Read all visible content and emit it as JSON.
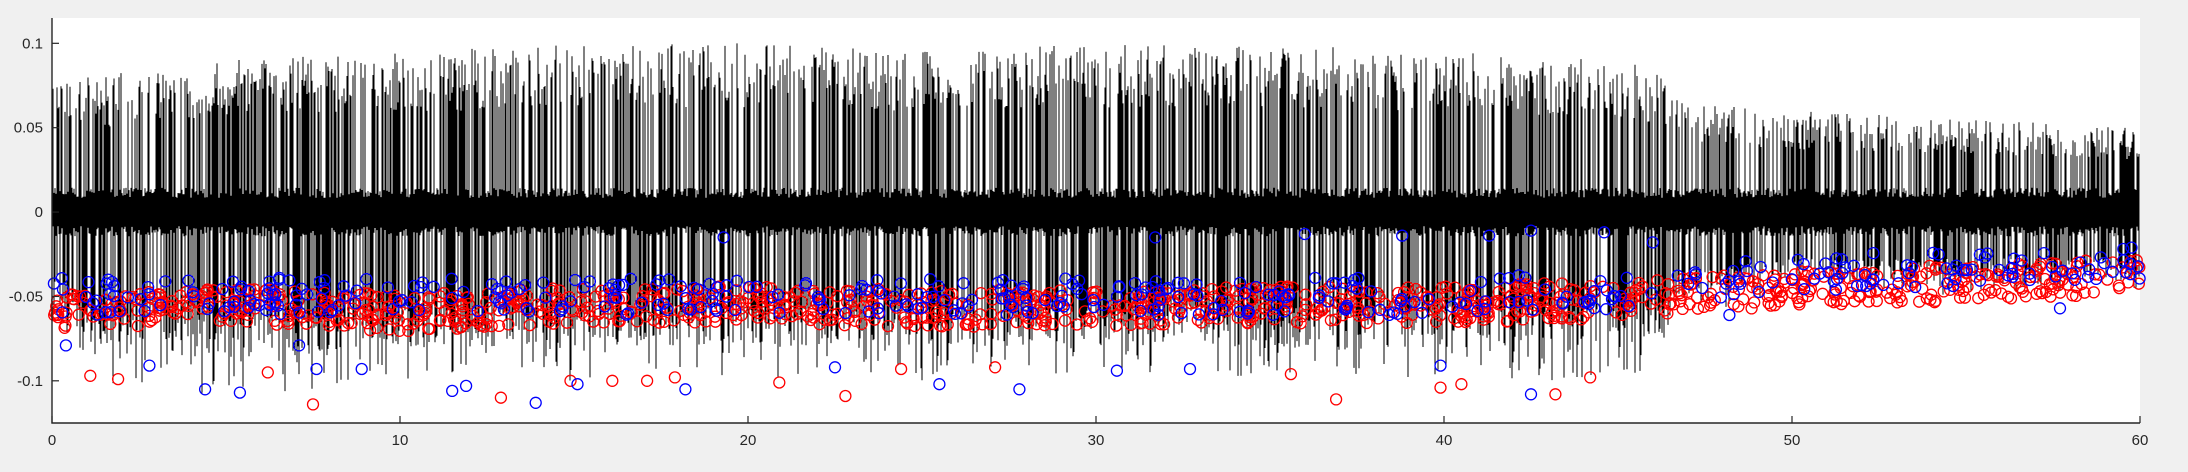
{
  "window": {
    "background": "#f0f0f0"
  },
  "chart_data": {
    "type": "scatter",
    "title": "",
    "xlabel": "",
    "ylabel": "",
    "xlim": [
      0,
      60
    ],
    "ylim": [
      -0.125,
      0.115
    ],
    "x_ticks": [
      0,
      10,
      20,
      30,
      40,
      50,
      60
    ],
    "x_tick_labels": [
      "0",
      "10",
      "20",
      "30",
      "40",
      "50",
      "60"
    ],
    "y_ticks": [
      -0.1,
      -0.05,
      0,
      0.05,
      0.1
    ],
    "y_tick_labels": [
      "-0.1",
      "-0.05",
      "0",
      "0.05",
      "0.1"
    ],
    "grid": false,
    "legend": "none",
    "series": [
      {
        "kind": "line",
        "color": "#000000",
        "baseline_noise": 0.012,
        "envelope": [
          {
            "x": 0,
            "max": 0.085,
            "min": -0.06
          },
          {
            "x": 1,
            "max": 0.08,
            "min": -0.1
          },
          {
            "x": 5,
            "max": 0.09,
            "min": -0.11
          },
          {
            "x": 10,
            "max": 0.095,
            "min": -0.1
          },
          {
            "x": 15,
            "max": 0.1,
            "min": -0.1
          },
          {
            "x": 20,
            "max": 0.1,
            "min": -0.1
          },
          {
            "x": 25,
            "max": 0.095,
            "min": -0.1
          },
          {
            "x": 30,
            "max": 0.1,
            "min": -0.1
          },
          {
            "x": 35,
            "max": 0.1,
            "min": -0.1
          },
          {
            "x": 40,
            "max": 0.095,
            "min": -0.1
          },
          {
            "x": 45,
            "max": 0.09,
            "min": -0.1
          },
          {
            "x": 46.2,
            "max": 0.085,
            "min": -0.09
          },
          {
            "x": 47,
            "max": 0.065,
            "min": -0.06
          },
          {
            "x": 50,
            "max": 0.06,
            "min": -0.05
          },
          {
            "x": 55,
            "max": 0.055,
            "min": -0.05
          },
          {
            "x": 60,
            "max": 0.05,
            "min": -0.045
          }
        ]
      },
      {
        "kind": "markers",
        "marker": "circle-open",
        "color": "#ff0000",
        "cluster": [
          {
            "x": 0,
            "y": -0.06
          },
          {
            "x": 5,
            "y": -0.055
          },
          {
            "x": 10,
            "y": -0.06
          },
          {
            "x": 15,
            "y": -0.055
          },
          {
            "x": 20,
            "y": -0.055
          },
          {
            "x": 25,
            "y": -0.057
          },
          {
            "x": 30,
            "y": -0.057
          },
          {
            "x": 35,
            "y": -0.055
          },
          {
            "x": 40,
            "y": -0.055
          },
          {
            "x": 45,
            "y": -0.052
          },
          {
            "x": 47,
            "y": -0.05
          },
          {
            "x": 50,
            "y": -0.045
          },
          {
            "x": 55,
            "y": -0.042
          },
          {
            "x": 60,
            "y": -0.038
          }
        ],
        "outliers": [
          {
            "x": 1.1,
            "y": -0.097
          },
          {
            "x": 1.9,
            "y": -0.099
          },
          {
            "x": 6.2,
            "y": -0.095
          },
          {
            "x": 7.5,
            "y": -0.114
          },
          {
            "x": 12.9,
            "y": -0.11
          },
          {
            "x": 14.9,
            "y": -0.1
          },
          {
            "x": 16.1,
            "y": -0.1
          },
          {
            "x": 17.1,
            "y": -0.1
          },
          {
            "x": 17.9,
            "y": -0.098
          },
          {
            "x": 20.9,
            "y": -0.101
          },
          {
            "x": 22.8,
            "y": -0.109
          },
          {
            "x": 24.4,
            "y": -0.093
          },
          {
            "x": 27.1,
            "y": -0.092
          },
          {
            "x": 35.6,
            "y": -0.096
          },
          {
            "x": 36.9,
            "y": -0.111
          },
          {
            "x": 39.9,
            "y": -0.104
          },
          {
            "x": 40.5,
            "y": -0.102
          },
          {
            "x": 43.2,
            "y": -0.108
          },
          {
            "x": 44.2,
            "y": -0.098
          }
        ]
      },
      {
        "kind": "markers",
        "marker": "circle-open",
        "color": "#0000ff",
        "cluster": [
          {
            "x": 0,
            "y": -0.05
          },
          {
            "x": 10,
            "y": -0.05
          },
          {
            "x": 20,
            "y": -0.05
          },
          {
            "x": 30,
            "y": -0.05
          },
          {
            "x": 40,
            "y": -0.05
          },
          {
            "x": 47,
            "y": -0.045
          },
          {
            "x": 50,
            "y": -0.035
          },
          {
            "x": 55,
            "y": -0.035
          },
          {
            "x": 60,
            "y": -0.03
          }
        ],
        "outliers": [
          {
            "x": 0.4,
            "y": -0.079
          },
          {
            "x": 2.8,
            "y": -0.091
          },
          {
            "x": 4.4,
            "y": -0.105
          },
          {
            "x": 5.4,
            "y": -0.107
          },
          {
            "x": 7.1,
            "y": -0.079
          },
          {
            "x": 7.6,
            "y": -0.093
          },
          {
            "x": 8.9,
            "y": -0.093
          },
          {
            "x": 11.5,
            "y": -0.106
          },
          {
            "x": 11.9,
            "y": -0.103
          },
          {
            "x": 13.9,
            "y": -0.113
          },
          {
            "x": 15.1,
            "y": -0.102
          },
          {
            "x": 18.2,
            "y": -0.105
          },
          {
            "x": 19.3,
            "y": -0.015
          },
          {
            "x": 22.5,
            "y": -0.092
          },
          {
            "x": 25.5,
            "y": -0.102
          },
          {
            "x": 27.8,
            "y": -0.105
          },
          {
            "x": 30.6,
            "y": -0.094
          },
          {
            "x": 31.7,
            "y": -0.015
          },
          {
            "x": 32.7,
            "y": -0.093
          },
          {
            "x": 36,
            "y": -0.013
          },
          {
            "x": 38.8,
            "y": -0.014
          },
          {
            "x": 39.9,
            "y": -0.091
          },
          {
            "x": 41.3,
            "y": -0.014
          },
          {
            "x": 42.5,
            "y": -0.108
          },
          {
            "x": 42.5,
            "y": -0.011
          },
          {
            "x": 44.6,
            "y": -0.012
          },
          {
            "x": 46,
            "y": -0.018
          },
          {
            "x": 48.2,
            "y": -0.061
          },
          {
            "x": 57.7,
            "y": -0.057
          }
        ]
      }
    ]
  }
}
